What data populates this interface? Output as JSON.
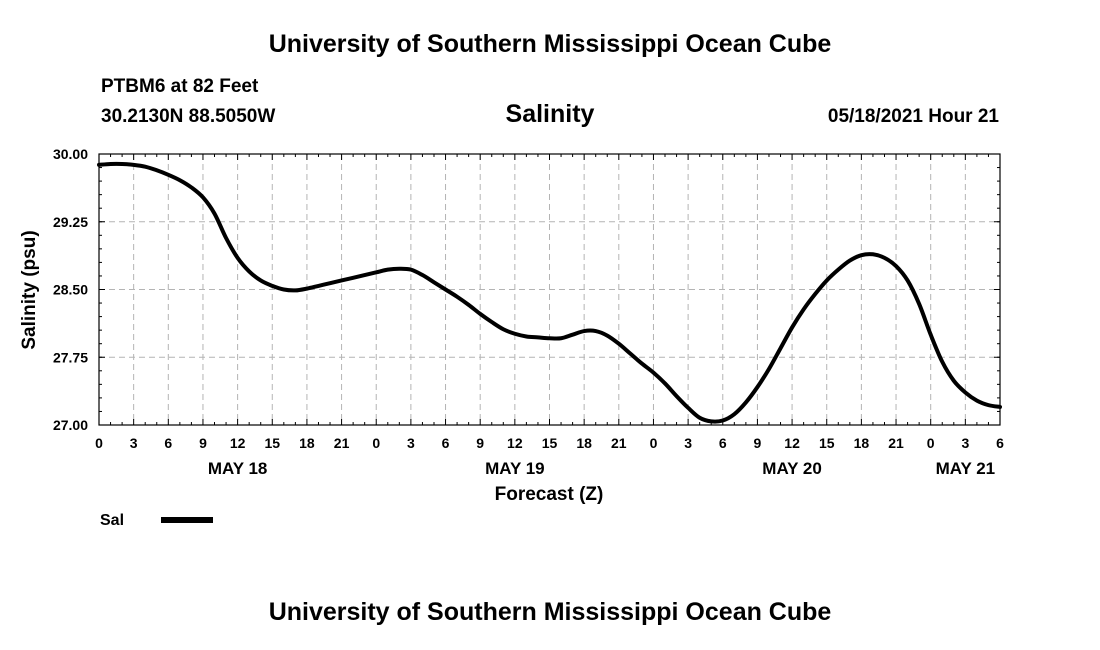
{
  "header": {
    "title_top": "University of Southern Mississippi Ocean Cube",
    "station": "PTBM6 at 82 Feet",
    "coords": "30.2130N  88.5050W",
    "datetime": "05/18/2021 Hour 21",
    "title_bottom": "University of Southern Mississippi Ocean Cube"
  },
  "chart_data": {
    "type": "line",
    "title": "Salinity",
    "xlabel": "Forecast (Z)",
    "ylabel": "Salinity (psu)",
    "x_unit": "hours since 2021-05-18 00Z",
    "xlim": [
      0,
      78
    ],
    "ylim": [
      27.0,
      30.0
    ],
    "y_ticks": [
      "27.00",
      "27.75",
      "28.50",
      "29.25",
      "30.00"
    ],
    "y_tick_values": [
      27.0,
      27.75,
      28.5,
      29.25,
      30.0
    ],
    "x_ticks": [
      {
        "x": 0,
        "label": "0"
      },
      {
        "x": 3,
        "label": "3"
      },
      {
        "x": 6,
        "label": "6"
      },
      {
        "x": 9,
        "label": "9"
      },
      {
        "x": 12,
        "label": "12"
      },
      {
        "x": 15,
        "label": "15"
      },
      {
        "x": 18,
        "label": "18"
      },
      {
        "x": 21,
        "label": "21"
      },
      {
        "x": 24,
        "label": "0"
      },
      {
        "x": 27,
        "label": "3"
      },
      {
        "x": 30,
        "label": "6"
      },
      {
        "x": 33,
        "label": "9"
      },
      {
        "x": 36,
        "label": "12"
      },
      {
        "x": 39,
        "label": "15"
      },
      {
        "x": 42,
        "label": "18"
      },
      {
        "x": 45,
        "label": "21"
      },
      {
        "x": 48,
        "label": "0"
      },
      {
        "x": 51,
        "label": "3"
      },
      {
        "x": 54,
        "label": "6"
      },
      {
        "x": 57,
        "label": "9"
      },
      {
        "x": 60,
        "label": "12"
      },
      {
        "x": 63,
        "label": "15"
      },
      {
        "x": 66,
        "label": "18"
      },
      {
        "x": 69,
        "label": "21"
      },
      {
        "x": 72,
        "label": "0"
      },
      {
        "x": 75,
        "label": "3"
      },
      {
        "x": 78,
        "label": "6"
      }
    ],
    "day_labels": [
      {
        "x": 12,
        "label": "MAY 18"
      },
      {
        "x": 36,
        "label": "MAY 19"
      },
      {
        "x": 60,
        "label": "MAY 20"
      },
      {
        "x": 75,
        "label": "MAY 21"
      }
    ],
    "grid": true,
    "legend_position": "bottom-left",
    "series": [
      {
        "name": "Sal",
        "color": "#000000",
        "x": [
          0,
          1,
          2,
          3,
          4,
          5,
          6,
          7,
          8,
          9,
          10,
          11,
          12,
          13,
          14,
          15,
          16,
          17,
          18,
          19,
          20,
          21,
          22,
          23,
          24,
          25,
          26,
          27,
          28,
          29,
          30,
          31,
          32,
          33,
          34,
          35,
          36,
          37,
          38,
          39,
          40,
          41,
          42,
          43,
          44,
          45,
          46,
          47,
          48,
          49,
          50,
          51,
          52,
          53,
          54,
          55,
          56,
          57,
          58,
          59,
          60,
          61,
          62,
          63,
          64,
          65,
          66,
          67,
          68,
          69,
          70,
          71,
          72,
          73,
          74,
          75,
          76,
          77,
          78
        ],
        "values": [
          29.88,
          29.89,
          29.89,
          29.88,
          29.86,
          29.82,
          29.77,
          29.71,
          29.63,
          29.52,
          29.34,
          29.07,
          28.85,
          28.7,
          28.6,
          28.54,
          28.5,
          28.49,
          28.51,
          28.54,
          28.57,
          28.6,
          28.63,
          28.66,
          28.69,
          28.72,
          28.73,
          28.72,
          28.66,
          28.58,
          28.5,
          28.42,
          28.33,
          28.23,
          28.14,
          28.06,
          28.01,
          27.98,
          27.97,
          27.96,
          27.96,
          28.0,
          28.04,
          28.04,
          27.99,
          27.9,
          27.79,
          27.68,
          27.58,
          27.46,
          27.32,
          27.19,
          27.08,
          27.04,
          27.05,
          27.12,
          27.25,
          27.42,
          27.62,
          27.85,
          28.08,
          28.28,
          28.45,
          28.6,
          28.72,
          28.82,
          28.88,
          28.89,
          28.85,
          28.76,
          28.6,
          28.34,
          28.0,
          27.7,
          27.49,
          27.36,
          27.27,
          27.22,
          27.2
        ]
      }
    ]
  }
}
